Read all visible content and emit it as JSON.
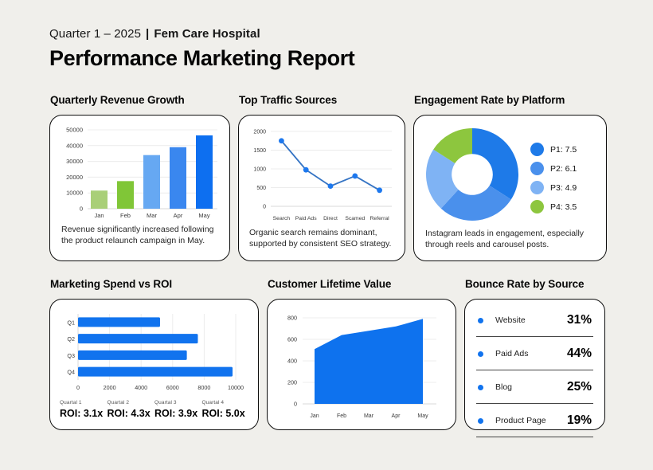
{
  "header": {
    "period": "Quarter 1 – 2025",
    "divider": "|",
    "organization": "Fem Care Hospital",
    "title": "Performance Marketing Report"
  },
  "panels": {
    "revenue": {
      "title": "Quarterly Revenue Growth",
      "caption": "Revenue significantly increased following the product relaunch campaign in May."
    },
    "traffic": {
      "title": "Top Traffic Sources",
      "caption": "Organic search remains dominant, supported by consistent SEO strategy."
    },
    "engagement": {
      "title": "Engagement Rate by Platform",
      "caption": "Instagram leads in engagement, especially through reels and carousel posts.",
      "legend": [
        {
          "label": "P1: 7.5",
          "color": "#1e7ae8"
        },
        {
          "label": "P2: 6.1",
          "color": "#4a90ec"
        },
        {
          "label": "P3: 4.9",
          "color": "#7fb3f4"
        },
        {
          "label": "P4: 3.5",
          "color": "#8dc63e"
        }
      ]
    },
    "roi": {
      "title": "Marketing Spend vs ROI",
      "quarters": [
        {
          "label": "Quartal 1",
          "value": "ROI: 3.1x"
        },
        {
          "label": "Quartal 2",
          "value": "ROI: 4.3x"
        },
        {
          "label": "Quartal 3",
          "value": "ROI: 3.9x"
        },
        {
          "label": "Quartal 4",
          "value": "ROI: 5.0x"
        }
      ]
    },
    "clv": {
      "title": "Customer Lifetime Value"
    },
    "bounce": {
      "title": "Bounce Rate by Source",
      "rows": [
        {
          "label": "Website",
          "value": "31%"
        },
        {
          "label": "Paid Ads",
          "value": "44%"
        },
        {
          "label": "Blog",
          "value": "25%"
        },
        {
          "label": "Product Page",
          "value": "19%"
        }
      ]
    }
  },
  "colors": {
    "accent_blue": "#0e72ee",
    "bullet_blue": "#1173ee",
    "page_background": "#f0efeb"
  },
  "chart_data": [
    {
      "id": "revenue",
      "type": "bar",
      "title": "Quarterly Revenue Growth",
      "categories": [
        "Jan",
        "Feb",
        "Mar",
        "Apr",
        "May"
      ],
      "values": [
        11500,
        17500,
        34000,
        39000,
        46500
      ],
      "ylim": [
        0,
        50000
      ],
      "ytick_step": 10000,
      "grid": "horizontal",
      "bar_colors": [
        "#a9cf78",
        "#80c637",
        "#66a8f2",
        "#3a87ef",
        "#0d6ff0"
      ]
    },
    {
      "id": "traffic",
      "type": "line",
      "title": "Top Traffic Sources",
      "categories": [
        "Search",
        "Paid Ads",
        "Direct",
        "Scamed",
        "Referral"
      ],
      "values": [
        1750,
        975,
        540,
        810,
        430
      ],
      "ylim": [
        0,
        2000
      ],
      "ytick_step": 500,
      "grid": "horizontal",
      "line_color": "#3574c4",
      "marker_color": "#1d78ee"
    },
    {
      "id": "engagement",
      "type": "pie",
      "donut": true,
      "title": "Engagement Rate by Platform",
      "labels": [
        "P1",
        "P2",
        "P3",
        "P4"
      ],
      "values": [
        7.5,
        6.1,
        4.9,
        3.5
      ],
      "colors": [
        "#1e7ae8",
        "#4a90ec",
        "#7fb3f4",
        "#8dc63e"
      ],
      "legend_position": "right"
    },
    {
      "id": "roi",
      "type": "bar",
      "orientation": "horizontal",
      "title": "Marketing Spend vs ROI",
      "categories": [
        "Q1",
        "Q2",
        "Q3",
        "Q4"
      ],
      "values": [
        5200,
        7600,
        6900,
        9800
      ],
      "xlim": [
        0,
        10000
      ],
      "xtick_step": 2000,
      "grid": "vertical",
      "color": "#1173ee",
      "roi_multipliers": [
        3.1,
        4.3,
        3.9,
        5.0
      ]
    },
    {
      "id": "clv",
      "type": "area",
      "title": "Customer Lifetime Value",
      "categories": [
        "Jan",
        "Feb",
        "Mar",
        "Apr",
        "May"
      ],
      "values": [
        510,
        640,
        680,
        720,
        790
      ],
      "ylim": [
        0,
        800
      ],
      "ytick_step": 200,
      "grid": "horizontal",
      "color": "#0e72ee"
    },
    {
      "id": "bounce",
      "type": "table",
      "title": "Bounce Rate by Source",
      "rows": [
        [
          "Website",
          "31%"
        ],
        [
          "Paid Ads",
          "44%"
        ],
        [
          "Blog",
          "25%"
        ],
        [
          "Product Page",
          "19%"
        ]
      ]
    }
  ]
}
